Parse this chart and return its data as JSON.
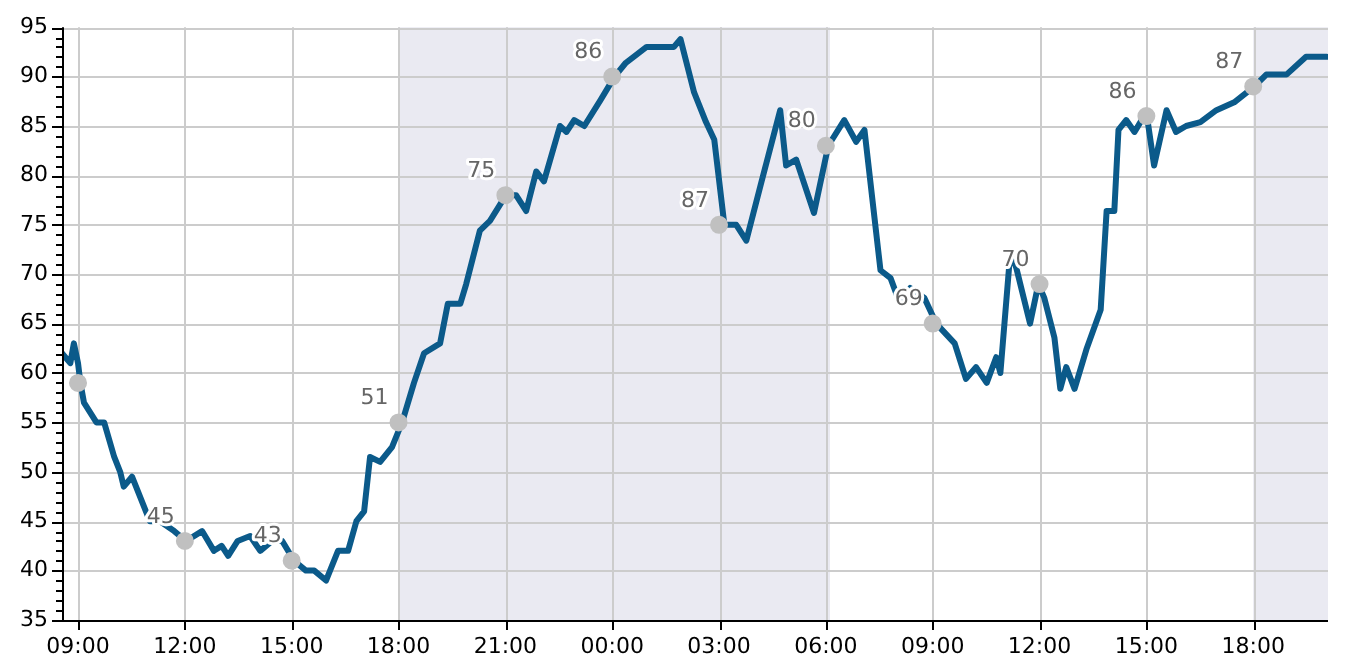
{
  "chart_data": {
    "type": "line",
    "x": [
      "--01-01T08:33",
      "--01-01T08:47",
      "--01-01T08:53",
      "--01-01T09:00",
      "--01-01T09:04",
      "--01-01T09:10",
      "--01-01T09:31",
      "--01-01T09:44",
      "--01-01T10:01",
      "--01-01T10:11",
      "--01-01T10:17",
      "--01-01T10:31",
      "--01-01T11:01",
      "--01-01T11:18",
      "--01-01T11:42",
      "--01-01T12:02",
      "--01-01T12:29",
      "--01-01T12:49",
      "--01-01T13:02",
      "--01-01T13:13",
      "--01-01T13:29",
      "--01-01T13:50",
      "--01-01T14:07",
      "--01-01T14:27",
      "--01-01T14:44",
      "--01-01T15:04",
      "--01-01T15:24",
      "--01-01T15:38",
      "--01-01T15:58",
      "--01-01T16:18",
      "--01-01T16:35",
      "--01-01T16:49",
      "--01-01T17:02",
      "--01-01T17:12",
      "--01-01T17:29",
      "--01-01T17:49",
      "--01-01T18:06",
      "--01-01T18:26",
      "--01-01T18:43",
      "--01-01T19:10",
      "--01-01T19:23",
      "--01-01T19:44",
      "--01-01T19:54",
      "--01-01T20:17",
      "--01-01T20:34",
      "--01-01T21:01",
      "--01-01T21:18",
      "--01-01T21:35",
      "--01-01T21:52",
      "--01-01T22:05",
      "--01-01T22:32",
      "--01-01T22:43",
      "--01-01T22:56",
      "--01-01T23:13",
      "--01-01T23:40",
      "--01-02T00:04",
      "--01-02T00:23",
      "--01-02T00:58",
      "--01-02T01:44",
      "--01-02T01:55",
      "--01-02T02:18",
      "--01-02T02:38",
      "--01-02T02:52",
      "--01-02T03:09",
      "--01-02T03:29",
      "--01-02T03:46",
      "--01-02T04:10",
      "--01-02T04:43",
      "--01-02T04:53",
      "--01-02T05:10",
      "--01-02T05:40",
      "--01-02T06:04",
      "--01-02T06:31",
      "--01-02T06:51",
      "--01-02T07:05",
      "--01-02T07:32",
      "--01-02T07:49",
      "--01-02T08:05",
      "--01-02T08:22",
      "--01-02T08:46",
      "--01-02T09:06",
      "--01-02T09:37",
      "--01-02T09:56",
      "--01-02T10:13",
      "--01-02T10:31",
      "--01-02T10:47",
      "--01-02T10:54",
      "--01-02T11:11",
      "--01-02T11:21",
      "--01-02T11:44",
      "--01-02T11:58",
      "--01-02T12:08",
      "--01-02T12:25",
      "--01-02T12:35",
      "--01-02T12:45",
      "--01-02T12:59",
      "--01-02T13:19",
      "--01-02T13:43",
      "--01-02T13:53",
      "--01-02T14:06",
      "--01-02T14:13",
      "--01-02T14:26",
      "--01-02T14:40",
      "--01-02T15:00",
      "--01-02T15:13",
      "--01-02T15:34",
      "--01-02T15:50",
      "--01-02T16:07",
      "--01-02T16:31",
      "--01-02T16:58",
      "--01-02T17:28",
      "--01-02T18:02",
      "--01-02T18:22",
      "--01-02T18:56",
      "--01-02T19:29",
      "--01-02T20:04"
    ],
    "series": [
      {
        "color": "#0b5a8a",
        "marker": "none",
        "values": [
          62,
          61,
          63,
          61,
          59,
          57,
          55,
          55,
          51.5,
          50,
          48.5,
          49.5,
          45,
          45,
          44,
          43,
          44,
          42,
          42.5,
          41.5,
          43,
          43.5,
          42,
          43,
          43,
          41,
          40,
          40,
          39,
          42,
          42,
          45,
          46,
          51.5,
          51,
          52.5,
          55,
          59,
          62,
          63,
          67,
          67,
          69,
          74.4,
          75.4,
          78,
          78,
          76.4,
          80.4,
          79.4,
          85,
          84.4,
          85.6,
          85,
          87.6,
          90,
          91.4,
          93,
          93,
          93.8,
          88.4,
          85.4,
          83.6,
          75,
          75,
          73.4,
          79,
          86.6,
          81,
          81.6,
          76.2,
          83,
          85.6,
          83.4,
          84.6,
          70.4,
          69.6,
          67,
          68.6,
          67.6,
          65,
          63,
          59.4,
          60.6,
          59,
          61.6,
          60,
          72.4,
          70.6,
          65,
          69,
          67.6,
          63.6,
          58.4,
          60.6,
          58.4,
          62.4,
          66.4,
          76.4,
          76.4,
          84.6,
          85.6,
          84.4,
          86.4,
          81,
          86.6,
          84.4,
          85,
          85.4,
          86.6,
          87.4,
          89,
          90.2,
          90.2,
          92,
          92
        ]
      },
      {
        "type": "scatter",
        "color": "#c0c0c0",
        "marker": "circle",
        "x": [
          "--01-01T09:00",
          "--01-01T12:00",
          "--01-01T15:00",
          "--01-01T18:00",
          "--01-01T21:00",
          "--01-02T00:00",
          "--01-02T03:00",
          "--01-02T06:00",
          "--01-02T09:00",
          "--01-02T12:00",
          "--01-02T15:00",
          "--01-02T18:00"
        ],
        "values": [
          59,
          43,
          41,
          55,
          78,
          90,
          75,
          83,
          65,
          69,
          86,
          89
        ]
      }
    ],
    "annotations": [
      "45",
      "43",
      "51",
      "75",
      "86",
      "87",
      "80",
      "69",
      "70",
      "86",
      "87"
    ],
    "bands": [
      {
        "axis": "x",
        "from": "--01-01T18:00",
        "to": "--01-02T06:07",
        "color": "#eaeaf2"
      },
      {
        "axis": "x",
        "from": "--01-02T18:00",
        "to": "--01-02T20:06",
        "color": "#eaeaf2"
      }
    ],
    "xlim": [
      "--01-01T08:33",
      "--01-02T20:06"
    ],
    "xticks": [
      {
        "value": "--01-01T09:00",
        "label": "09:00"
      },
      {
        "value": "--01-01T12:00",
        "label": "12:00"
      },
      {
        "value": "--01-01T15:00",
        "label": "15:00"
      },
      {
        "value": "--01-01T18:00",
        "label": "18:00"
      },
      {
        "value": "--01-01T21:00",
        "label": "21:00"
      },
      {
        "value": "--01-02T00:00",
        "label": "00:00"
      },
      {
        "value": "--01-02T03:00",
        "label": "03:00"
      },
      {
        "value": "--01-02T06:00",
        "label": "06:00"
      },
      {
        "value": "--01-02T09:00",
        "label": "09:00"
      },
      {
        "value": "--01-02T12:00",
        "label": "12:00"
      },
      {
        "value": "--01-02T15:00",
        "label": "15:00"
      },
      {
        "value": "--01-02T18:00",
        "label": "18:00"
      }
    ],
    "ylim": [
      35,
      95
    ],
    "yticks": [
      35,
      {
        "value": 36,
        "label": null
      },
      {
        "value": 37,
        "label": null
      },
      {
        "value": 38,
        "label": null
      },
      {
        "value": 39,
        "label": null
      },
      40,
      {
        "value": 41,
        "label": null
      },
      {
        "value": 42,
        "label": null
      },
      {
        "value": 43,
        "label": null
      },
      {
        "value": 44,
        "label": null
      },
      45,
      {
        "value": 46,
        "label": null
      },
      {
        "value": 47,
        "label": null
      },
      {
        "value": 48,
        "label": null
      },
      {
        "value": 49,
        "label": null
      },
      50,
      {
        "value": 51,
        "label": null
      },
      {
        "value": 52,
        "label": null
      },
      {
        "value": 53,
        "label": null
      },
      {
        "value": 54,
        "label": null
      },
      55,
      {
        "value": 56,
        "label": null
      },
      {
        "value": 57,
        "label": null
      },
      {
        "value": 58,
        "label": null
      },
      {
        "value": 59,
        "label": null
      },
      60,
      {
        "value": 61,
        "label": null
      },
      {
        "value": 62,
        "label": null
      },
      {
        "value": 63,
        "label": null
      },
      {
        "value": 64,
        "label": null
      },
      65,
      {
        "value": 66,
        "label": null
      },
      {
        "value": 67,
        "label": null
      },
      {
        "value": 68,
        "label": null
      },
      {
        "value": 69,
        "label": null
      },
      70,
      {
        "value": 71,
        "label": null
      },
      {
        "value": 72,
        "label": null
      },
      {
        "value": 73,
        "label": null
      },
      {
        "value": 74,
        "label": null
      },
      75,
      {
        "value": 76,
        "label": null
      },
      {
        "value": 77,
        "label": null
      },
      {
        "value": 78,
        "label": null
      },
      {
        "value": 79,
        "label": null
      },
      80,
      {
        "value": 81,
        "label": null
      },
      {
        "value": 82,
        "label": null
      },
      {
        "value": 83,
        "label": null
      },
      {
        "value": 84,
        "label": null
      },
      85,
      {
        "value": 86,
        "label": null
      },
      {
        "value": 87,
        "label": null
      },
      {
        "value": 88,
        "label": null
      },
      {
        "value": 89,
        "label": null
      },
      90,
      {
        "value": 91,
        "label": null
      },
      {
        "value": 92,
        "label": null
      },
      {
        "value": 93,
        "label": null
      },
      {
        "value": 94,
        "label": null
      },
      95
    ],
    "grid": true,
    "legend": false,
    "line_style": "solid"
  }
}
